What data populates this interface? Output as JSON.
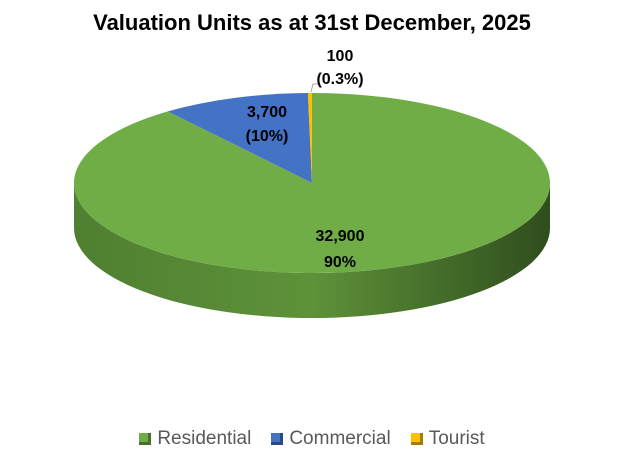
{
  "chart_data": {
    "type": "pie",
    "title": "Valuation Units as at 31st December, 2025",
    "start": "top, clockwise",
    "style": "3d",
    "legend_position": "bottom",
    "slices": [
      {
        "name": "Residential",
        "value": 32900,
        "value_label": "32,900",
        "pct_label": "90%",
        "color": "#70AD47"
      },
      {
        "name": "Commercial",
        "value": 3700,
        "value_label": "3,700",
        "pct_label": "(10%)",
        "color": "#4472C4"
      },
      {
        "name": "Tourist",
        "value": 100,
        "value_label": "100",
        "pct_label": "(0.3%)",
        "color": "#FFC000"
      }
    ]
  }
}
